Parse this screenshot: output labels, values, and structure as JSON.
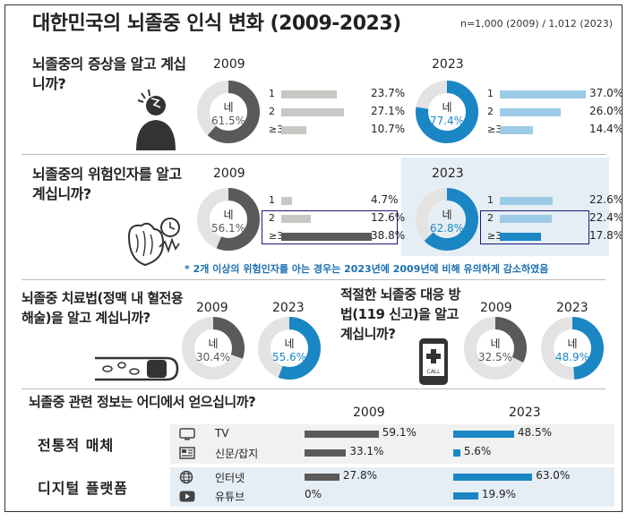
{
  "title": "대한민국의 뇌졸중 인식 변화 (2009-2023)",
  "sample": "n=1,000 (2009) / 1,012 (2023)",
  "colors": {
    "y2009": "#5a5a5a",
    "y2023": "#1b86c4",
    "light2009": "#c9c7c4",
    "light2023": "#9ccbe6",
    "ring": "#e3e3e3"
  },
  "symptoms": {
    "question": "뇌졸중의 증상을 알고 계십니까?",
    "year_a": "2009",
    "year_b": "2023",
    "donut_a": {
      "label": "네",
      "value": 61.5,
      "text": "61.5%"
    },
    "donut_b": {
      "label": "네",
      "value": 77.4,
      "text": "77.4%"
    },
    "bars_a": [
      {
        "label": "1",
        "value": 23.7,
        "text": "23.7%"
      },
      {
        "label": "2",
        "value": 27.1,
        "text": "27.1%"
      },
      {
        "label": "≥3",
        "value": 10.7,
        "text": "10.7%"
      }
    ],
    "bars_b": [
      {
        "label": "1",
        "value": 37.0,
        "text": "37.0%"
      },
      {
        "label": "2",
        "value": 26.0,
        "text": "26.0%"
      },
      {
        "label": "≥3",
        "value": 14.4,
        "text": "14.4%"
      }
    ]
  },
  "risk": {
    "question": "뇌졸중의 위험인자를 알고 계십니까?",
    "year_a": "2009",
    "year_b": "2023",
    "donut_a": {
      "label": "네",
      "value": 56.1,
      "text": "56.1%"
    },
    "donut_b": {
      "label": "네",
      "value": 62.8,
      "text": "62.8%"
    },
    "bars_a": [
      {
        "label": "1",
        "value": 4.7,
        "text": "4.7%"
      },
      {
        "label": "2",
        "value": 12.6,
        "text": "12.6%"
      },
      {
        "label": "≥3",
        "value": 38.8,
        "text": "38.8%"
      }
    ],
    "bars_b": [
      {
        "label": "1",
        "value": 22.6,
        "text": "22.6%"
      },
      {
        "label": "2",
        "value": 22.4,
        "text": "22.4%"
      },
      {
        "label": "≥3",
        "value": 17.8,
        "text": "17.8%"
      }
    ],
    "note": "* 2개 이상의 위험인자를 아는 경우는 2023년에 2009년에 비해 유의하게 감소하였음"
  },
  "treatment": {
    "question": "뇌졸중 치료법(정맥 내 혈전용해술)을 알고 계십니까?",
    "year_a": "2009",
    "year_b": "2023",
    "donut_a": {
      "label": "네",
      "value": 30.4,
      "text": "30.4%"
    },
    "donut_b": {
      "label": "네",
      "value": 55.6,
      "text": "55.6%"
    }
  },
  "response": {
    "question": "적절한 뇌졸중 대응 방법(119 신고)을 알고 계십니까?",
    "year_a": "2009",
    "year_b": "2023",
    "donut_a": {
      "label": "네",
      "value": 32.5,
      "text": "32.5%"
    },
    "donut_b": {
      "label": "네",
      "value": 48.9,
      "text": "48.9%"
    },
    "phone_text": "CALL"
  },
  "sources": {
    "question": "뇌졸중 관련 정보는 어디에서 얻으십니까?",
    "year_a": "2009",
    "year_b": "2023",
    "groups": [
      {
        "name": "전통적 매체",
        "items": [
          {
            "label": "TV",
            "icon": "tv-icon",
            "v2009": 59.1,
            "t2009": "59.1%",
            "v2023": 48.5,
            "t2023": "48.5%"
          },
          {
            "label": "신문/잡지",
            "icon": "newspaper-icon",
            "v2009": 33.1,
            "t2009": "33.1%",
            "v2023": 5.6,
            "t2023": "5.6%"
          }
        ]
      },
      {
        "name": "디지털 플랫폼",
        "items": [
          {
            "label": "인터넷",
            "icon": "globe-icon",
            "v2009": 27.8,
            "t2009": "27.8%",
            "v2023": 63.0,
            "t2023": "63.0%"
          },
          {
            "label": "유튜브",
            "icon": "youtube-icon",
            "v2009": 0,
            "t2009": "0%",
            "v2023": 19.9,
            "t2023": "19.9%"
          }
        ]
      }
    ]
  },
  "chart_data": [
    {
      "type": "pie",
      "title": "뇌졸중의 증상을 알고 계십니까?",
      "series": [
        {
          "name": "2009",
          "values": [
            61.5
          ]
        },
        {
          "name": "2023",
          "values": [
            77.4
          ]
        }
      ]
    },
    {
      "type": "bar",
      "title": "",
      "categories": [
        "1",
        "2",
        "≥3"
      ],
      "series": [
        {
          "name": "2009",
          "values": [
            23.7,
            27.1,
            10.7
          ]
        },
        {
          "name": "2023",
          "values": [
            37.0,
            26.0,
            14.4
          ]
        }
      ]
    },
    {
      "type": "pie",
      "title": "뇌졸중의 위험인자를 알고 계십니까?",
      "series": [
        {
          "name": "2009",
          "values": [
            56.1
          ]
        },
        {
          "name": "2023",
          "values": [
            62.8
          ]
        }
      ]
    },
    {
      "type": "bar",
      "title": "",
      "categories": [
        "1",
        "2",
        "≥3"
      ],
      "series": [
        {
          "name": "2009",
          "values": [
            4.7,
            12.6,
            38.8
          ]
        },
        {
          "name": "2023",
          "values": [
            22.6,
            22.4,
            17.8
          ]
        }
      ]
    },
    {
      "type": "pie",
      "title": "뇌졸중 치료법(정맥 내 혈전용해술)을 알고 계십니까?",
      "series": [
        {
          "name": "2009",
          "values": [
            30.4
          ]
        },
        {
          "name": "2023",
          "values": [
            55.6
          ]
        }
      ]
    },
    {
      "type": "pie",
      "title": "적절한 뇌졸중 대응 방법(119 신고)을 알고 계십니까?",
      "series": [
        {
          "name": "2009",
          "values": [
            32.5
          ]
        },
        {
          "name": "2023",
          "values": [
            48.9
          ]
        }
      ]
    },
    {
      "type": "bar",
      "title": "뇌졸중 관련 정보는 어디에서 얻으십니까?",
      "categories": [
        "TV",
        "신문/잡지",
        "인터넷",
        "유튜브"
      ],
      "series": [
        {
          "name": "2009",
          "values": [
            59.1,
            33.1,
            27.8,
            0
          ]
        },
        {
          "name": "2023",
          "values": [
            48.5,
            5.6,
            63.0,
            19.9
          ]
        }
      ]
    }
  ]
}
